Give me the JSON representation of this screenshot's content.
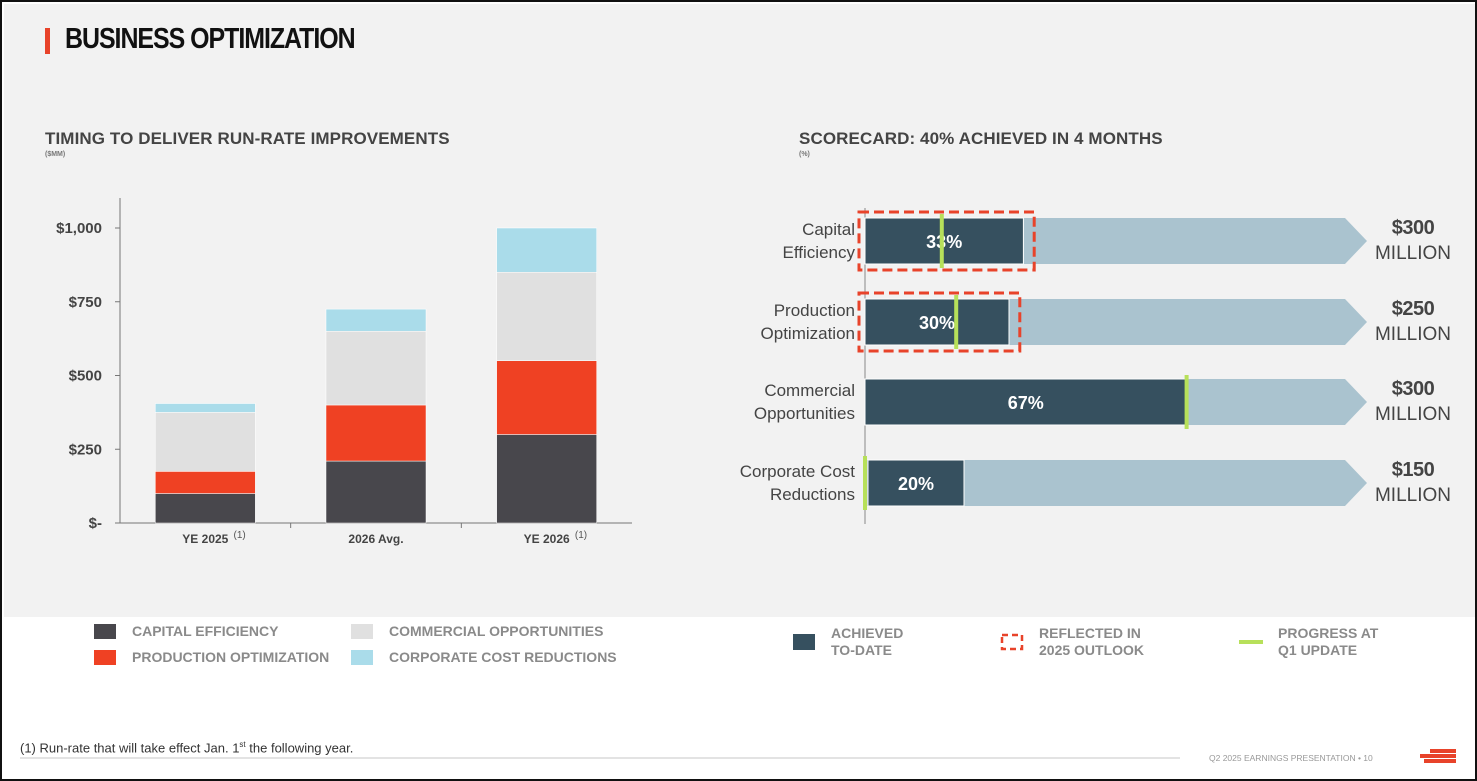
{
  "page": {
    "title": "BUSINESS OPTIMIZATION",
    "footer_text": "Q2 2025 EARNINGS PRESENTATION  •  10",
    "footnote_main": "(1) Run-rate that will take effect Jan. 1",
    "footnote_sup": "st",
    "footnote_tail": " the following year."
  },
  "left": {
    "title": "TIMING TO DELIVER RUN-RATE IMPROVEMENTS",
    "unit": "($MM)"
  },
  "right": {
    "title": "SCORECARD: 40% ACHIEVED IN 4 MONTHS",
    "unit": "(%)"
  },
  "colors": {
    "capital_efficiency": "#48474c",
    "production_optimization": "#ef4123",
    "commercial_opportunities": "#e0e0e0",
    "corporate_cost_reductions": "#aadcea",
    "achieved": "#36505f",
    "remaining": "#aac3cf",
    "outlook_dash": "#e8432a",
    "q1_progress": "#b7e05a"
  },
  "chart_data": [
    {
      "type": "bar",
      "stacked": true,
      "categories": [
        "YE 2025",
        "2026 Avg.",
        "YE 2026"
      ],
      "category_notes": [
        "(1)",
        "",
        "(1)"
      ],
      "series": [
        {
          "name": "CAPITAL EFFICIENCY",
          "values": [
            100,
            210,
            300
          ]
        },
        {
          "name": "PRODUCTION OPTIMIZATION",
          "values": [
            75,
            190,
            250
          ]
        },
        {
          "name": "COMMERCIAL OPPORTUNITIES",
          "values": [
            200,
            250,
            300
          ]
        },
        {
          "name": "CORPORATE COST REDUCTIONS",
          "values": [
            30,
            75,
            150
          ]
        }
      ],
      "ylim": [
        0,
        1000
      ],
      "yticks": [
        0,
        250,
        500,
        750,
        1000
      ],
      "ytick_labels": [
        "$-",
        "$250",
        "$500",
        "$750",
        "$1,000"
      ],
      "legend": "bottom",
      "grid": false
    },
    {
      "type": "bar",
      "orientation": "horizontal",
      "categories": [
        "Capital\nEfficiency",
        "Production\nOptimization",
        "Commercial\nOpportunities",
        "Corporate Cost\nReductions"
      ],
      "achieved_pct": [
        33,
        30,
        67,
        20
      ],
      "achieved_labels": [
        "33%",
        "30%",
        "67%",
        "20%"
      ],
      "outlook_pct": [
        34,
        31,
        null,
        null
      ],
      "q1_progress_pct": [
        16,
        19,
        67,
        0
      ],
      "targets": [
        {
          "amount": "$300",
          "unit": "MILLION"
        },
        {
          "amount": "$250",
          "unit": "MILLION"
        },
        {
          "amount": "$300",
          "unit": "MILLION"
        },
        {
          "amount": "$150",
          "unit": "MILLION"
        }
      ],
      "legend": [
        {
          "kind": "achieved",
          "label": "ACHIEVED\nTO-DATE"
        },
        {
          "kind": "outlook",
          "label": "REFLECTED IN\n2025 OUTLOOK"
        },
        {
          "kind": "q1",
          "label": "PROGRESS AT\nQ1 UPDATE"
        }
      ]
    }
  ]
}
